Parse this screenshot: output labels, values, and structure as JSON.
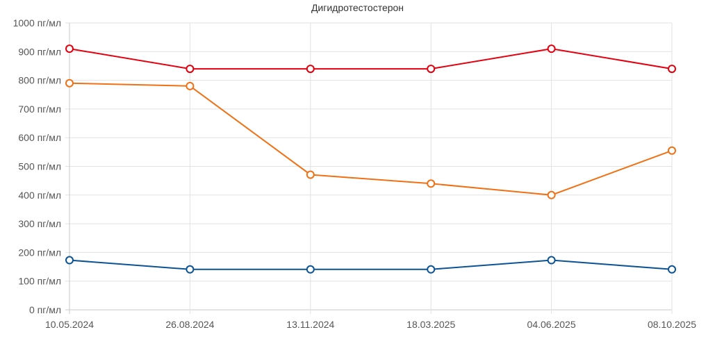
{
  "chart_data": {
    "type": "line",
    "title": "Дигидротестостерон",
    "x": [
      "10.05.2024",
      "26.08.2024",
      "13.11.2024",
      "18.03.2025",
      "04.06.2025",
      "08.10.2025"
    ],
    "y_ticks": [
      "0 пг/мл",
      "100 пг/мл",
      "200 пг/мл",
      "300 пг/мл",
      "400 пг/мл",
      "500 пг/мл",
      "600 пг/мл",
      "700 пг/мл",
      "800 пг/мл",
      "900 пг/мл",
      "1000 пг/мл"
    ],
    "ylim": [
      0,
      1000
    ],
    "grid": true,
    "series": [
      {
        "color": "#e3000f",
        "values": [
          910,
          840,
          840,
          840,
          910,
          840
        ]
      },
      {
        "color": "#f07014",
        "values": [
          790,
          780,
          471,
          440,
          400,
          555
        ]
      },
      {
        "color": "#0b5394",
        "values": [
          173,
          141,
          141,
          141,
          173,
          141
        ]
      }
    ]
  }
}
